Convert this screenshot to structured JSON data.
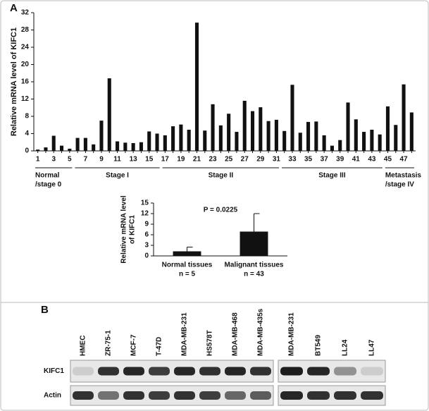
{
  "panel_labels": [
    "A",
    "B"
  ],
  "chart_data": [
    {
      "type": "bar",
      "categories": [
        1,
        null,
        3,
        null,
        5,
        null,
        7,
        null,
        9,
        null,
        11,
        null,
        13,
        null,
        15,
        null,
        17,
        null,
        19,
        null,
        21,
        null,
        23,
        null,
        25,
        null,
        27,
        null,
        29,
        null,
        31,
        null,
        33,
        null,
        35,
        null,
        37,
        null,
        39,
        null,
        41,
        null,
        43,
        null,
        45,
        null,
        47,
        null
      ],
      "values": [
        0.3,
        0.8,
        3.5,
        1.2,
        0.5,
        3.0,
        3.0,
        1.5,
        7.0,
        16.8,
        2.2,
        1.9,
        1.8,
        2.0,
        4.5,
        4.0,
        3.6,
        5.7,
        6.1,
        4.9,
        29.7,
        4.7,
        10.8,
        5.9,
        8.6,
        4.4,
        11.6,
        9.2,
        10.1,
        6.9,
        7.2,
        4.6,
        15.3,
        4.2,
        6.7,
        6.8,
        3.6,
        1.2,
        2.5,
        11.2,
        7.3,
        4.4,
        4.9,
        3.8,
        10.3,
        6.0,
        15.4,
        8.9
      ],
      "color": "#111111",
      "ylim": [
        0,
        32
      ],
      "yticks": [
        0,
        4,
        8,
        12,
        16,
        20,
        24,
        28,
        32
      ],
      "ylabel": "Relative mRNA level of KIFC1",
      "groups": [
        {
          "label": [
            "Normal",
            "/stage 0"
          ],
          "from": 1,
          "to": 5
        },
        {
          "label": [
            "Stage I"
          ],
          "from": 6,
          "to": 16
        },
        {
          "label": [
            "Stage II"
          ],
          "from": 17,
          "to": 31
        },
        {
          "label": [
            "Stage III"
          ],
          "from": 32,
          "to": 44
        },
        {
          "label": [
            "Metastasis",
            "/stage IV"
          ],
          "from": 45,
          "to": 48
        }
      ]
    },
    {
      "type": "bar",
      "categories": [
        [
          "Normal tissues",
          "n = 5"
        ],
        [
          "Malignant tissues",
          "n = 43"
        ]
      ],
      "values": [
        1.3,
        6.9
      ],
      "errors": [
        1.2,
        5.1
      ],
      "color": "#111111",
      "ylim": [
        0,
        15
      ],
      "yticks": [
        0,
        3,
        6,
        9,
        12,
        15
      ],
      "ylabel": [
        "Relative mRNA level",
        "of KIFC1"
      ],
      "annotation": "P = 0.0225"
    }
  ],
  "blot": {
    "lanes": [
      [
        "HMEC",
        "ZR-75-1",
        "MCF-7",
        "T-47D",
        "MDA-MB-231",
        "HS578T",
        "MDA-MB-468",
        "MDA-MB-435s"
      ],
      [
        "MDA-MB-231",
        "BT549",
        "LL24",
        "LL47"
      ]
    ],
    "rows": [
      "KIFC1",
      "Actin"
    ]
  }
}
